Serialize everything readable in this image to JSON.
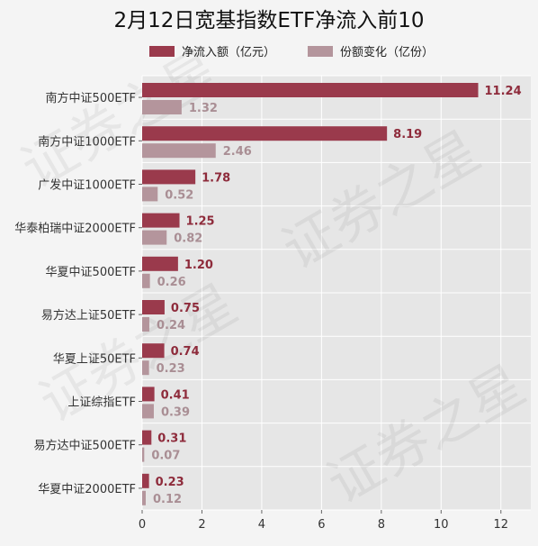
{
  "chart_data": {
    "type": "bar",
    "orientation": "horizontal",
    "title": "2月12日宽基指数ETF净流入前10",
    "categories": [
      "南方中证500ETF",
      "南方中证1000ETF",
      "广发中证1000ETF",
      "华泰柏瑞中证2000ETF",
      "华夏中证500ETF",
      "易方达上证50ETF",
      "华夏上证50ETF",
      "上证综指ETF",
      "易方达中证500ETF",
      "华夏中证2000ETF"
    ],
    "series": [
      {
        "name": "净流入额（亿元）",
        "values": [
          11.24,
          8.19,
          1.78,
          1.25,
          1.2,
          0.75,
          0.74,
          0.41,
          0.31,
          0.23
        ],
        "labels": [
          "11.24",
          "8.19",
          "1.78",
          "1.25",
          "1.20",
          "0.75",
          "0.74",
          "0.41",
          "0.31",
          "0.23"
        ],
        "color": "#9a3a4c"
      },
      {
        "name": "份额变化（亿份）",
        "values": [
          1.32,
          2.46,
          0.52,
          0.82,
          0.26,
          0.24,
          0.23,
          0.39,
          0.07,
          0.12
        ],
        "labels": [
          "1.32",
          "2.46",
          "0.52",
          "0.82",
          "0.26",
          "0.24",
          "0.23",
          "0.39",
          "0.07",
          "0.12"
        ],
        "color": "#b4959c"
      }
    ],
    "xlim": [
      0,
      13
    ],
    "xticks": [
      "0",
      "2",
      "4",
      "6",
      "8",
      "10",
      "12"
    ],
    "grid": true,
    "legend": "top",
    "watermark": "证券之星"
  }
}
